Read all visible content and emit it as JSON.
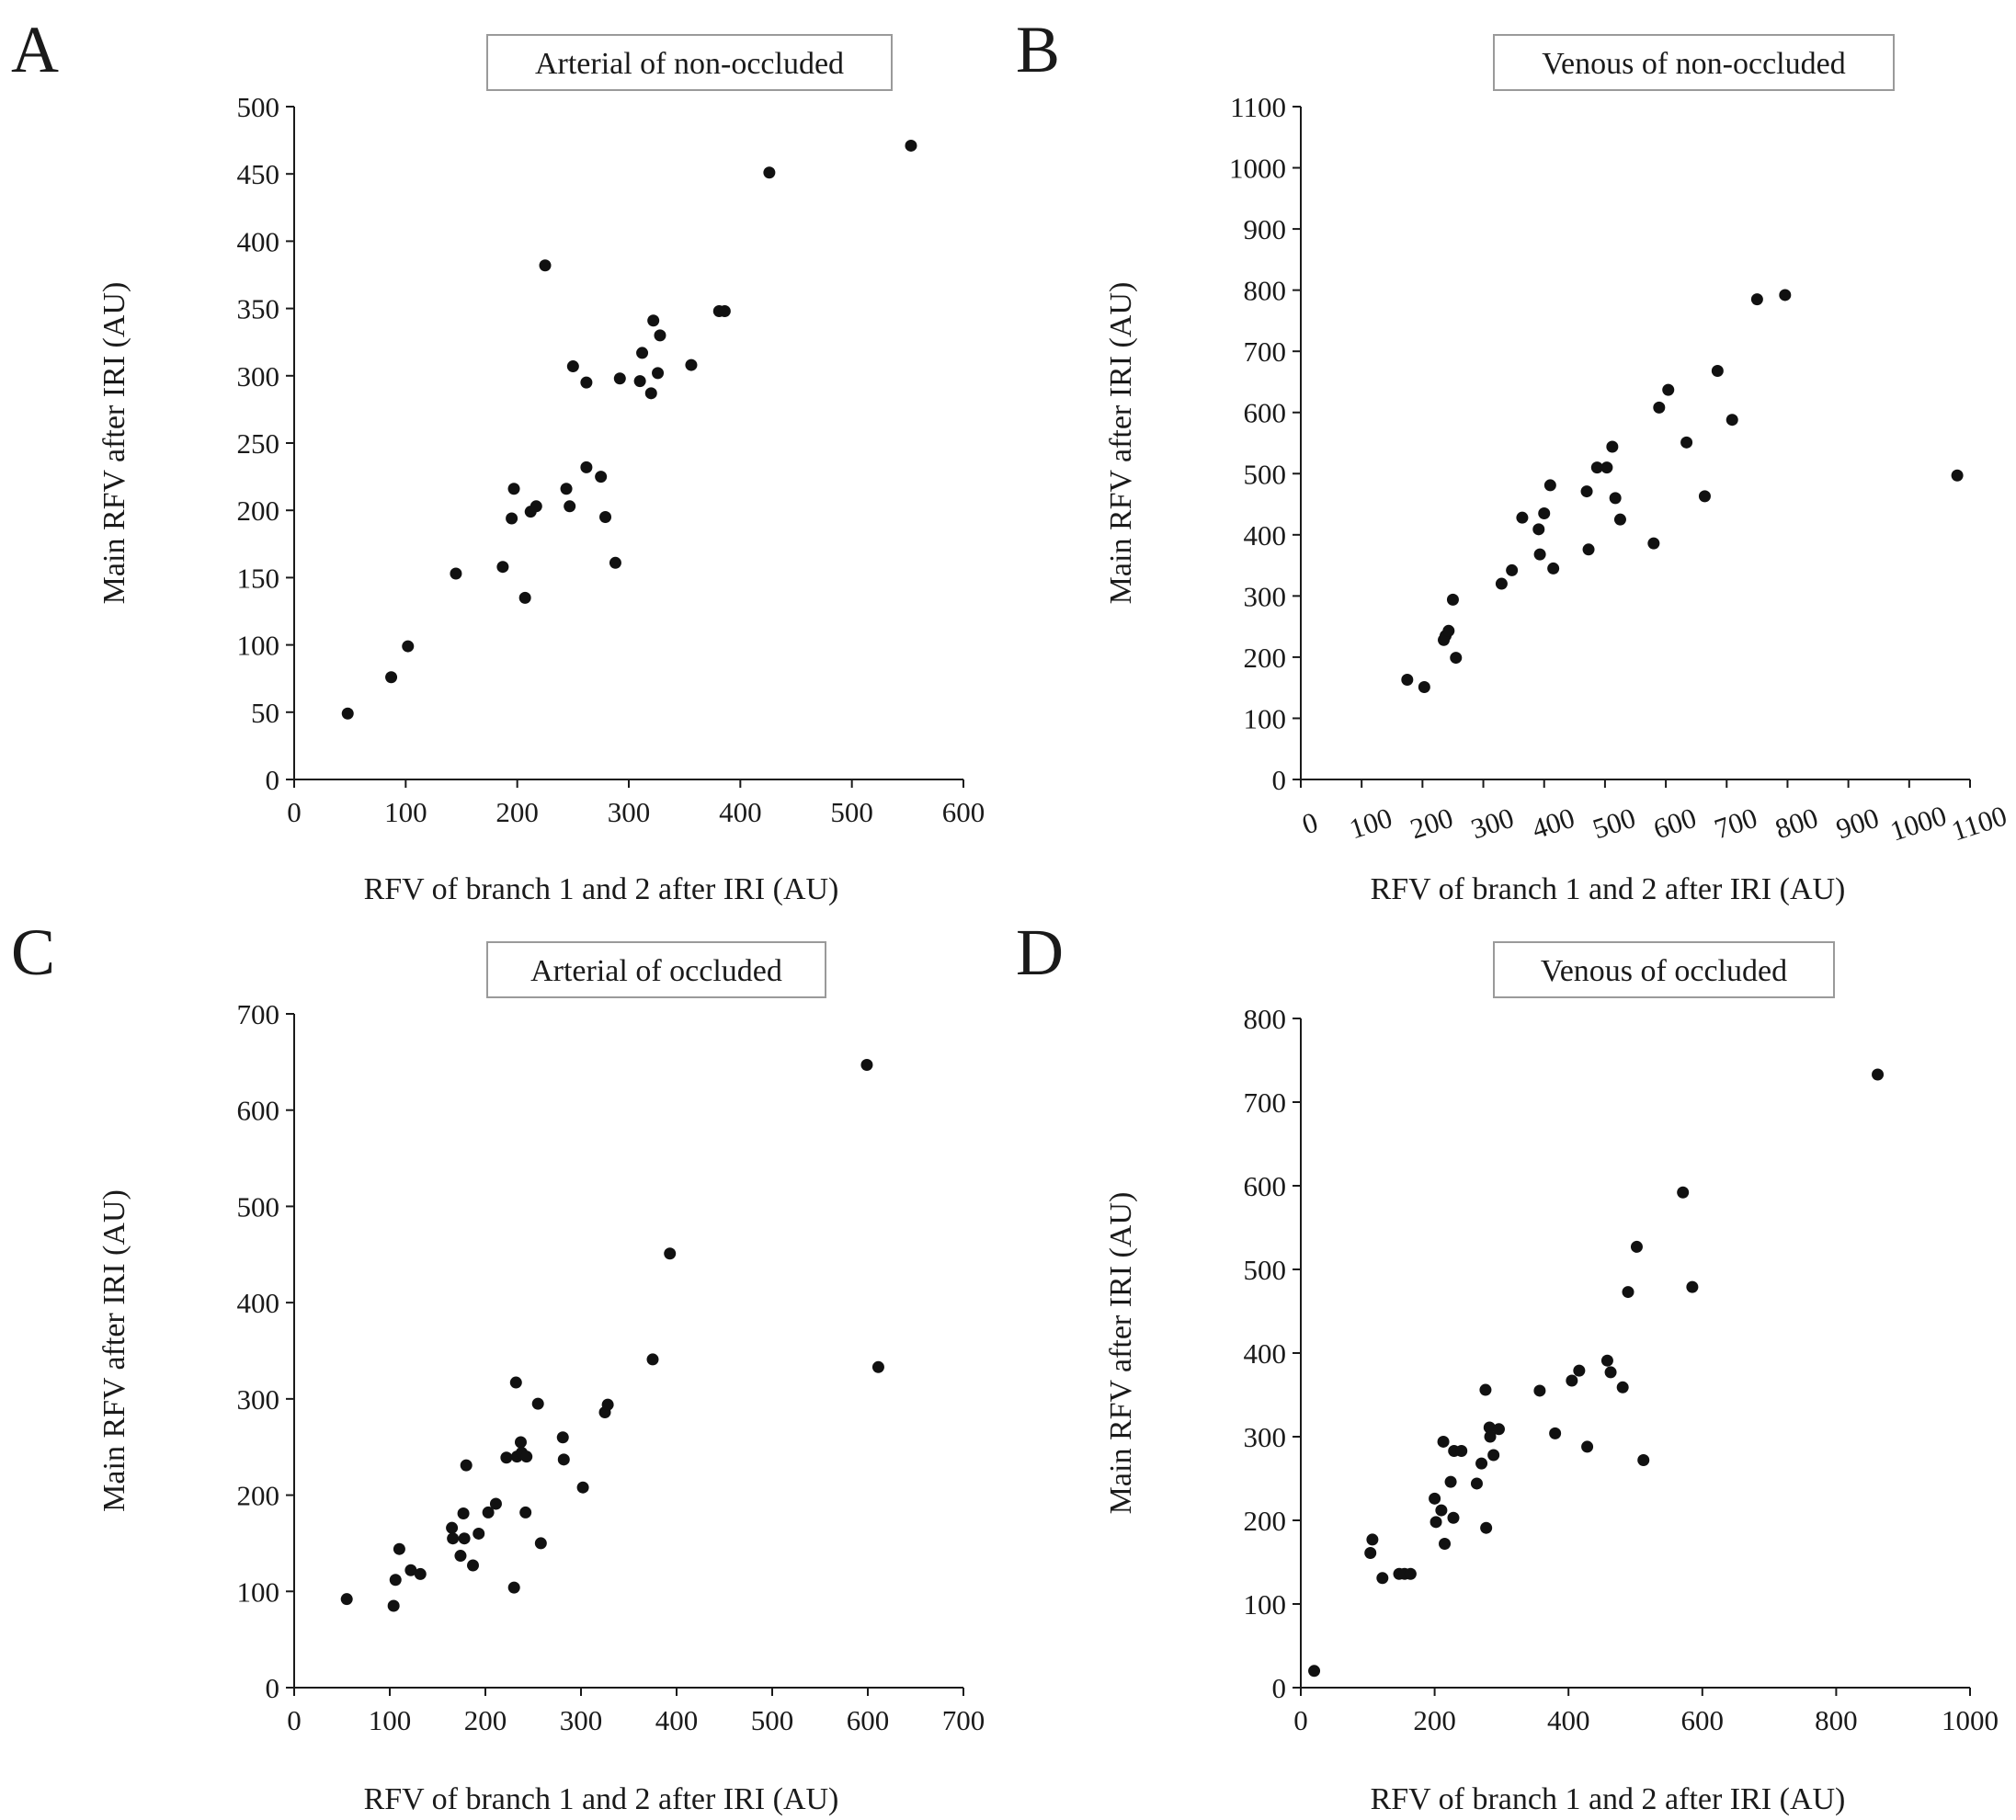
{
  "chart_data": [
    {
      "panel": "A",
      "type": "scatter",
      "title": "Arterial of non-occluded",
      "xlabel": "RFV of branch 1 and 2 after IRI (AU)",
      "ylabel": "Main RFV after IRI  (AU)",
      "xlim": [
        0,
        600
      ],
      "ylim": [
        0,
        500
      ],
      "xticks": [
        0,
        100,
        200,
        300,
        400,
        500,
        600
      ],
      "yticks": [
        0,
        50,
        100,
        150,
        200,
        250,
        300,
        350,
        400,
        450,
        500
      ],
      "points": [
        [
          48,
          49
        ],
        [
          87,
          76
        ],
        [
          102,
          99
        ],
        [
          145,
          153
        ],
        [
          187,
          158
        ],
        [
          195,
          194
        ],
        [
          197,
          216
        ],
        [
          207,
          135
        ],
        [
          212,
          199
        ],
        [
          217,
          203
        ],
        [
          225,
          382
        ],
        [
          244,
          216
        ],
        [
          247,
          203
        ],
        [
          250,
          307
        ],
        [
          262,
          295
        ],
        [
          262,
          232
        ],
        [
          275,
          225
        ],
        [
          279,
          195
        ],
        [
          288,
          161
        ],
        [
          292,
          298
        ],
        [
          310,
          296
        ],
        [
          312,
          317
        ],
        [
          320,
          287
        ],
        [
          322,
          341
        ],
        [
          326,
          302
        ],
        [
          328,
          330
        ],
        [
          356,
          308
        ],
        [
          381,
          348
        ],
        [
          386,
          348
        ],
        [
          426,
          451
        ],
        [
          553,
          471
        ]
      ]
    },
    {
      "panel": "B",
      "type": "scatter",
      "title": "Venous of non-occluded",
      "xlabel": "RFV of branch 1 and 2 after IRI (AU)",
      "ylabel": "Main RFV after IRI  (AU)",
      "xlim": [
        0,
        1100
      ],
      "ylim": [
        0,
        1100
      ],
      "xticks": [
        0,
        100,
        200,
        300,
        400,
        500,
        600,
        700,
        800,
        900,
        1000,
        1100
      ],
      "yticks": [
        0,
        100,
        200,
        300,
        400,
        500,
        600,
        700,
        800,
        900,
        1000,
        1100
      ],
      "points": [
        [
          175,
          163
        ],
        [
          203,
          151
        ],
        [
          235,
          228
        ],
        [
          238,
          235
        ],
        [
          243,
          243
        ],
        [
          250,
          294
        ],
        [
          255,
          199
        ],
        [
          330,
          320
        ],
        [
          347,
          342
        ],
        [
          364,
          428
        ],
        [
          391,
          409
        ],
        [
          393,
          368
        ],
        [
          400,
          435
        ],
        [
          410,
          481
        ],
        [
          415,
          345
        ],
        [
          470,
          471
        ],
        [
          473,
          376
        ],
        [
          487,
          510
        ],
        [
          503,
          510
        ],
        [
          512,
          544
        ],
        [
          517,
          460
        ],
        [
          525,
          425
        ],
        [
          580,
          386
        ],
        [
          589,
          608
        ],
        [
          604,
          637
        ],
        [
          634,
          551
        ],
        [
          664,
          463
        ],
        [
          685,
          668
        ],
        [
          709,
          588
        ],
        [
          750,
          785
        ],
        [
          796,
          792
        ],
        [
          1079,
          497
        ]
      ]
    },
    {
      "panel": "C",
      "type": "scatter",
      "title": "Arterial of occluded",
      "xlabel": "RFV of branch 1 and 2 after IRI (AU)",
      "ylabel": "Main RFV after IRI  (AU)",
      "xlim": [
        0,
        700
      ],
      "ylim": [
        0,
        700
      ],
      "xticks": [
        0,
        100,
        200,
        300,
        400,
        500,
        600,
        700
      ],
      "yticks": [
        0,
        100,
        200,
        300,
        400,
        500,
        600,
        700
      ],
      "points": [
        [
          55,
          92
        ],
        [
          104,
          85
        ],
        [
          106,
          112
        ],
        [
          110,
          144
        ],
        [
          122,
          122
        ],
        [
          132,
          118
        ],
        [
          165,
          166
        ],
        [
          166,
          155
        ],
        [
          174,
          137
        ],
        [
          177,
          181
        ],
        [
          178,
          155
        ],
        [
          180,
          231
        ],
        [
          187,
          127
        ],
        [
          193,
          160
        ],
        [
          203,
          182
        ],
        [
          211,
          191
        ],
        [
          222,
          239
        ],
        [
          230,
          104
        ],
        [
          232,
          317
        ],
        [
          233,
          240
        ],
        [
          237,
          255
        ],
        [
          238,
          244
        ],
        [
          242,
          182
        ],
        [
          243,
          240
        ],
        [
          255,
          295
        ],
        [
          258,
          150
        ],
        [
          281,
          260
        ],
        [
          282,
          237
        ],
        [
          302,
          208
        ],
        [
          325,
          286
        ],
        [
          328,
          294
        ],
        [
          375,
          341
        ],
        [
          393,
          451
        ],
        [
          599,
          647
        ],
        [
          611,
          333
        ]
      ]
    },
    {
      "panel": "D",
      "type": "scatter",
      "title": "Venous of occluded",
      "xlabel": "RFV of branch 1 and 2 after IRI (AU)",
      "ylabel": "Main RFV after IRI  (AU)",
      "xlim": [
        0,
        1000
      ],
      "ylim": [
        0,
        800
      ],
      "xticks": [
        0,
        200,
        400,
        600,
        800,
        1000
      ],
      "yticks": [
        0,
        100,
        200,
        300,
        400,
        500,
        600,
        700,
        800
      ],
      "points": [
        [
          20,
          20
        ],
        [
          104,
          161
        ],
        [
          107,
          177
        ],
        [
          122,
          131
        ],
        [
          147,
          136
        ],
        [
          155,
          136
        ],
        [
          164,
          136
        ],
        [
          200,
          226
        ],
        [
          202,
          198
        ],
        [
          210,
          212
        ],
        [
          213,
          294
        ],
        [
          215,
          172
        ],
        [
          224,
          246
        ],
        [
          228,
          203
        ],
        [
          229,
          283
        ],
        [
          240,
          283
        ],
        [
          263,
          244
        ],
        [
          270,
          268
        ],
        [
          276,
          356
        ],
        [
          277,
          191
        ],
        [
          282,
          311
        ],
        [
          283,
          300
        ],
        [
          288,
          278
        ],
        [
          296,
          309
        ],
        [
          357,
          355
        ],
        [
          380,
          304
        ],
        [
          405,
          367
        ],
        [
          416,
          379
        ],
        [
          428,
          288
        ],
        [
          458,
          391
        ],
        [
          463,
          377
        ],
        [
          481,
          359
        ],
        [
          489,
          473
        ],
        [
          502,
          527
        ],
        [
          512,
          272
        ],
        [
          571,
          592
        ],
        [
          585,
          479
        ],
        [
          862,
          733
        ]
      ]
    }
  ],
  "panel_letters": [
    "A",
    "B",
    "C",
    "D"
  ]
}
